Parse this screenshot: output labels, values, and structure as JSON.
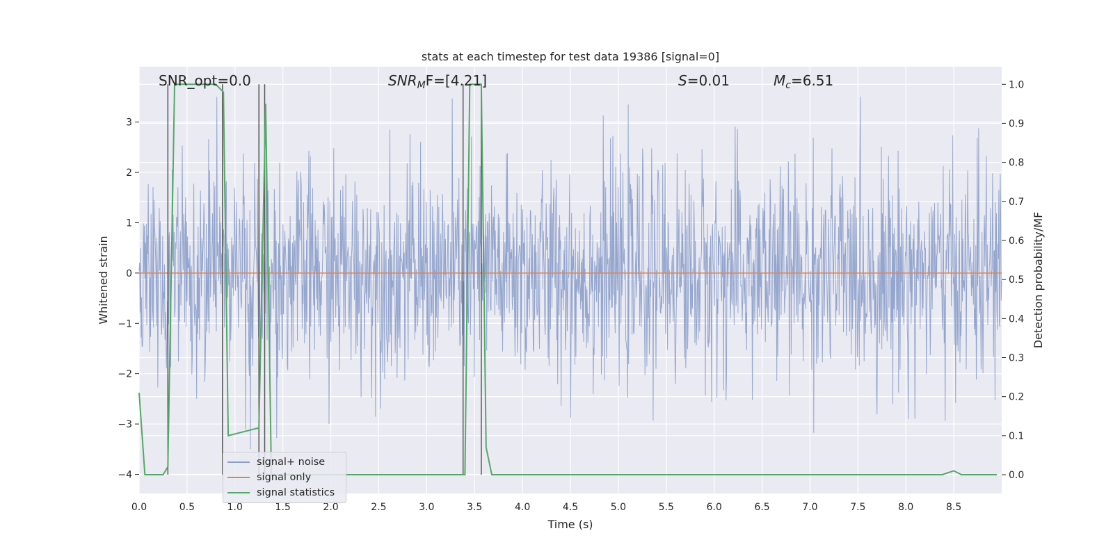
{
  "chart_data": {
    "type": "line",
    "title": "stats at each timestep for test data 19386 [signal=0]",
    "xlabel": "Time (s)",
    "ylabel": "Whitened strain",
    "ylabel_right": "Detection probability/MF",
    "xlim": [
      0,
      9.0
    ],
    "ylim": [
      -4.38,
      4.1
    ],
    "ylim_right": [
      -0.048,
      1.045
    ],
    "grid": true,
    "x_ticks": [
      "0.0",
      "0.5",
      "1.0",
      "1.5",
      "2.0",
      "2.5",
      "3.0",
      "3.5",
      "4.0",
      "4.5",
      "5.0",
      "5.5",
      "6.0",
      "6.5",
      "7.0",
      "7.5",
      "8.0",
      "8.5"
    ],
    "y_ticks": [
      "3",
      "2",
      "1",
      "0",
      "−1",
      "−2",
      "−3",
      "−4"
    ],
    "y_ticks_right": [
      "1.0",
      "0.9",
      "0.8",
      "0.7",
      "0.6",
      "0.5",
      "0.4",
      "0.3",
      "0.2",
      "0.1",
      "0.0"
    ],
    "annotations": {
      "snr_opt": "SNR_opt=0.0",
      "snr_mf_main": "SNR",
      "snr_mf_sub": "M",
      "snr_mf_rest": "F=[4.21]",
      "s_main": "S",
      "s_rest": "=0.01",
      "mc_main": "M",
      "mc_sub": "c",
      "mc_rest": "=6.51"
    },
    "series": [
      {
        "name": "signal+ noise",
        "color": "#8c9fca",
        "description_values": "whitened noise, approx. Gaussian, range −3.5 to 3.5"
      },
      {
        "name": "signal only",
        "color": "#dd8452",
        "values_constant": 0
      },
      {
        "name": "signal statistics",
        "color": "#55a868",
        "x": [
          0.0,
          0.06,
          0.25,
          0.3,
          0.37,
          0.8,
          0.88,
          0.93,
          1.25,
          1.32,
          1.38,
          1.42,
          3.35,
          3.4,
          3.45,
          3.57,
          3.62,
          3.68,
          8.38,
          8.5,
          8.58,
          8.95
        ],
        "values": [
          0.21,
          0.0,
          0.0,
          0.02,
          1.0,
          1.0,
          0.98,
          0.1,
          0.12,
          0.95,
          0.0,
          0.0,
          0.0,
          0.0,
          1.0,
          1.0,
          0.07,
          0.0,
          0.0,
          0.01,
          0.0,
          0.0
        ]
      }
    ],
    "vertical_markers_x": [
      0.3,
      0.87,
      1.25,
      1.31,
      3.38,
      3.57
    ],
    "marker_range": [
      0.0,
      1.0
    ]
  },
  "legend": {
    "signal_noise": "signal+ noise",
    "signal_only": "signal only",
    "signal_statistics": "signal statistics"
  }
}
